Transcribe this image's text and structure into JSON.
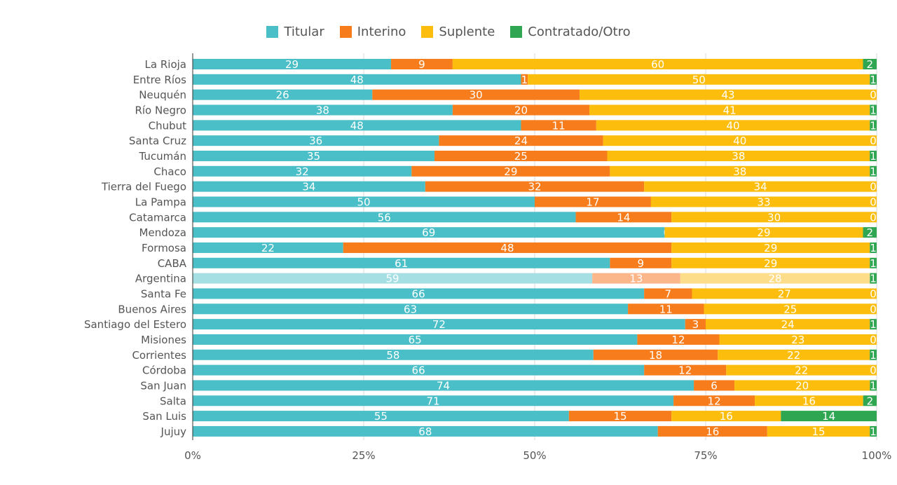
{
  "colors": {
    "titular": "#4bbfc8",
    "interino": "#f77c1b",
    "suplente": "#fcbd0d",
    "contratado": "#2fa651",
    "titular_highlight": "#a6dfe3",
    "interino_highlight": "#fbb68a",
    "suplente_highlight": "#fddd8a",
    "grid": "#d9d9d9",
    "axis": "#333333",
    "label": "#555555",
    "data_label": "#ffffff"
  },
  "chart_data": {
    "type": "bar",
    "orientation": "horizontal",
    "stacked": "percent",
    "highlighted_category": "Argentina",
    "legend_position": "top-center",
    "grid": true,
    "xlim": [
      0,
      100
    ],
    "x_ticks": [
      "0%",
      "25%",
      "50%",
      "75%",
      "100%"
    ],
    "categories": [
      "La Rioja",
      "Entre Ríos",
      "Neuquén",
      "Río Negro",
      "Chubut",
      "Santa Cruz",
      "Tucumán",
      "Chaco",
      "Tierra del Fuego",
      "La Pampa",
      "Catamarca",
      "Mendoza",
      "Formosa",
      "CABA",
      "Argentina",
      "Santa Fe",
      "Buenos Aires",
      "Santiago del Estero",
      "Misiones",
      "Corrientes",
      "Córdoba",
      "San Juan",
      "Salta",
      "San Luis",
      "Jujuy"
    ],
    "series": [
      {
        "name": "Titular",
        "color_key": "titular",
        "values": [
          29,
          48,
          26,
          38,
          48,
          36,
          35,
          32,
          34,
          50,
          56,
          69,
          22,
          61,
          59,
          66,
          63,
          72,
          65,
          58,
          66,
          74,
          71,
          55,
          68
        ]
      },
      {
        "name": "Interino",
        "color_key": "interino",
        "values": [
          9,
          1,
          30,
          20,
          11,
          24,
          25,
          29,
          32,
          17,
          14,
          0,
          48,
          9,
          13,
          7,
          11,
          3,
          12,
          18,
          12,
          6,
          12,
          15,
          16
        ]
      },
      {
        "name": "Suplente",
        "color_key": "suplente",
        "values": [
          60,
          50,
          43,
          41,
          40,
          40,
          38,
          38,
          34,
          33,
          30,
          29,
          29,
          29,
          28,
          27,
          25,
          24,
          23,
          22,
          22,
          20,
          16,
          16,
          15
        ]
      },
      {
        "name": "Contratado/Otro",
        "color_key": "contratado",
        "values": [
          2,
          1,
          0,
          1,
          1,
          0,
          1,
          1,
          0,
          0,
          0,
          2,
          1,
          1,
          1,
          0,
          0,
          1,
          0,
          1,
          0,
          1,
          2,
          14,
          1
        ]
      }
    ]
  }
}
